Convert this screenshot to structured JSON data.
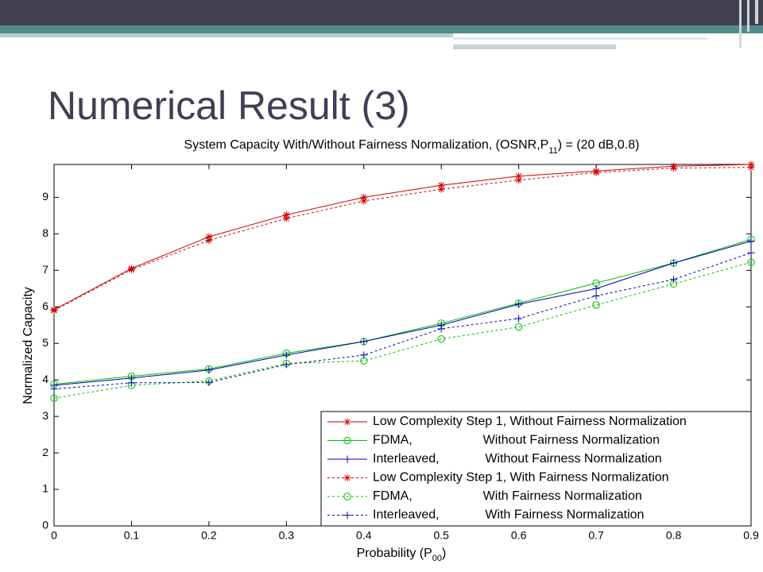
{
  "slide_title": "Numerical Result (3)",
  "chart_data": {
    "type": "line",
    "title_parts": [
      "System Capacity With/Without Fairness Normalization, (OSNR,P",
      "11",
      ") = (20 dB,0.8)"
    ],
    "xlabel_parts": [
      "Probability (P",
      "00",
      ")"
    ],
    "ylabel": "Normalized Capacity",
    "x": [
      0,
      0.1,
      0.2,
      0.3,
      0.4,
      0.5,
      0.6,
      0.7,
      0.8,
      0.9
    ],
    "xlim": [
      0,
      0.9
    ],
    "xticks": [
      0,
      0.1,
      0.2,
      0.3,
      0.4,
      0.5,
      0.6,
      0.7,
      0.8,
      0.9
    ],
    "ylim": [
      0,
      9.9
    ],
    "yticks": [
      0,
      1,
      2,
      3,
      4,
      5,
      6,
      7,
      8,
      9
    ],
    "grid": false,
    "legend": "lower right",
    "series": [
      {
        "name": "Low Complexity Step 1, Without Fairness Normalization",
        "color": "#d00000",
        "marker": "star",
        "line_style": "solid",
        "values": [
          5.92,
          7.05,
          7.92,
          8.52,
          9.0,
          9.33,
          9.58,
          9.72,
          9.85,
          9.9
        ]
      },
      {
        "name": "FDMA,                    Without Fairness Normalization",
        "color": "#00c000",
        "marker": "circle",
        "line_style": "solid",
        "values": [
          3.88,
          4.1,
          4.3,
          4.73,
          5.05,
          5.55,
          6.1,
          6.65,
          7.2,
          7.85
        ]
      },
      {
        "name": "Interleaved,             Without Fairness Normalization",
        "color": "#0000b0",
        "marker": "plus",
        "line_style": "solid",
        "values": [
          3.85,
          4.05,
          4.27,
          4.68,
          5.05,
          5.5,
          6.07,
          6.5,
          7.2,
          7.8
        ]
      },
      {
        "name": "Low Complexity Step 1, With Fairness Normalization",
        "color": "#d00000",
        "marker": "star",
        "line_style": "dashed",
        "values": [
          5.9,
          7.02,
          7.82,
          8.42,
          8.9,
          9.22,
          9.47,
          9.68,
          9.8,
          9.82
        ]
      },
      {
        "name": "FDMA,                    With Fairness Normalization",
        "color": "#00c000",
        "marker": "circle",
        "line_style": "dashed",
        "values": [
          3.5,
          3.85,
          3.97,
          4.45,
          4.52,
          5.12,
          5.45,
          6.05,
          6.63,
          7.22
        ]
      },
      {
        "name": "Interleaved,             With Fairness Normalization",
        "color": "#0000b0",
        "marker": "plus",
        "line_style": "dashed",
        "values": [
          3.75,
          3.92,
          3.93,
          4.42,
          4.68,
          5.4,
          5.68,
          6.3,
          6.75,
          7.48
        ]
      }
    ]
  }
}
